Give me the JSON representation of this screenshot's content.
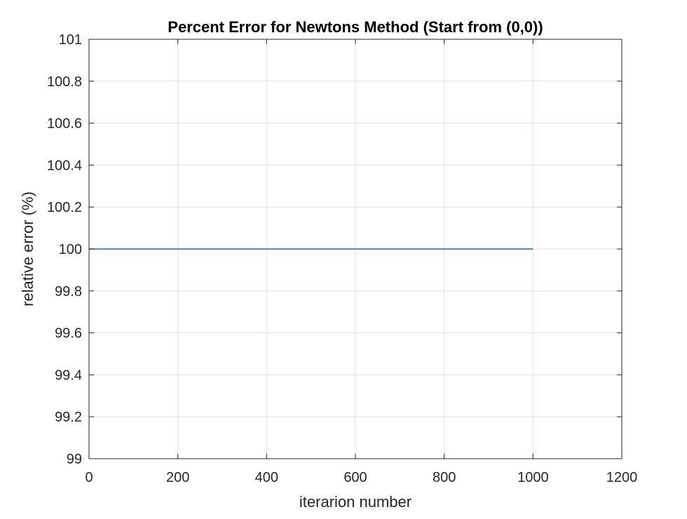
{
  "chart_data": {
    "type": "line",
    "title": "Percent Error for Newtons Method (Start from (0,0))",
    "xlabel": "iterarion number",
    "ylabel": "relative error (%)",
    "xlim": [
      0,
      1200
    ],
    "ylim": [
      99,
      101
    ],
    "xticks": [
      0,
      200,
      400,
      600,
      800,
      1000,
      1200
    ],
    "xtick_labels": [
      "0",
      "200",
      "400",
      "600",
      "800",
      "1000",
      "1200"
    ],
    "yticks": [
      99,
      99.2,
      99.4,
      99.6,
      99.8,
      100,
      100.2,
      100.4,
      100.6,
      100.8,
      101
    ],
    "ytick_labels": [
      "99",
      "99.2",
      "99.4",
      "99.6",
      "99.8",
      "100",
      "100.2",
      "100.4",
      "100.6",
      "100.8",
      "101"
    ],
    "grid": true,
    "series": [
      {
        "color": "#0072BD",
        "x": [
          1,
          1000
        ],
        "y": [
          100,
          100
        ]
      }
    ]
  }
}
